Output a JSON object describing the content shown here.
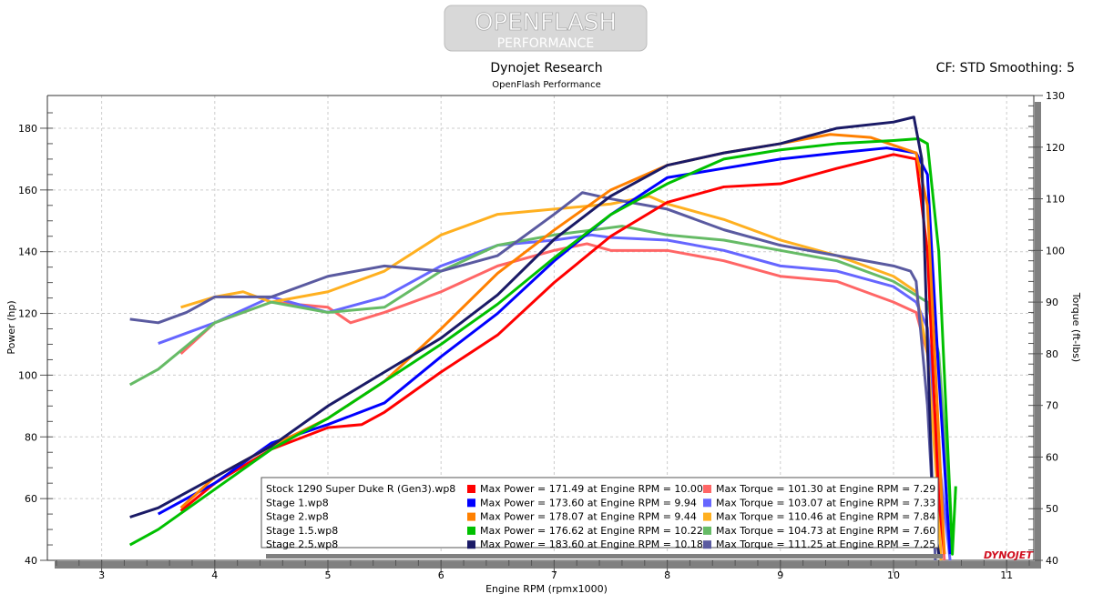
{
  "header": {
    "logo_line1": "OPENFLASH",
    "logo_line2": "PERFORMANCE",
    "title": "Dynojet Research",
    "subtitle": "OpenFlash Performance",
    "settings": "CF: STD Smoothing: 5",
    "watermark": "DYNOJET"
  },
  "chart_data": {
    "type": "line",
    "title": "Dynojet Research",
    "subtitle": "OpenFlash Performance",
    "xlabel": "Engine RPM (rpmx1000)",
    "ylabel": "Power (hp)",
    "y2label": "Torque (ft-lbs)",
    "xlim": [
      2.52,
      11.24
    ],
    "ylim": [
      40,
      190.6
    ],
    "y2lim": [
      40,
      130
    ],
    "xticks": [
      "3",
      "4",
      "5",
      "6",
      "7",
      "8",
      "9",
      "10",
      "11"
    ],
    "yticks": [
      "40",
      "60",
      "80",
      "100",
      "120",
      "140",
      "160",
      "180"
    ],
    "y2ticks": [
      "40",
      "50",
      "60",
      "70",
      "80",
      "90",
      "100",
      "110",
      "120",
      "130"
    ],
    "grid": true,
    "legend_position": "bottom-center",
    "series": [
      {
        "name": "Stock 1290 Super Duke R (Gen3).wp8",
        "power_color": "#ff0000",
        "torque_color": "#ff6666",
        "power_label": "Max Power = 171.49 at Engine RPM = 10.00",
        "torque_label": "Max Torque = 101.30 at Engine RPM = 7.29",
        "power": [
          [
            3.7,
            56
          ],
          [
            4,
            65
          ],
          [
            4.5,
            76
          ],
          [
            5,
            83
          ],
          [
            5.3,
            84
          ],
          [
            5.5,
            88
          ],
          [
            6,
            101
          ],
          [
            6.5,
            113
          ],
          [
            7,
            130
          ],
          [
            7.5,
            145
          ],
          [
            8,
            156
          ],
          [
            8.5,
            161
          ],
          [
            9,
            162
          ],
          [
            9.5,
            167
          ],
          [
            10,
            171.5
          ],
          [
            10.2,
            170
          ],
          [
            10.3,
            140
          ],
          [
            10.4,
            60
          ],
          [
            10.45,
            42
          ]
        ],
        "torque": [
          [
            3.7,
            80
          ],
          [
            4,
            86
          ],
          [
            4.5,
            90
          ],
          [
            5,
            89
          ],
          [
            5.2,
            86
          ],
          [
            5.5,
            88
          ],
          [
            6,
            92
          ],
          [
            6.5,
            97
          ],
          [
            7,
            100
          ],
          [
            7.29,
            101.3
          ],
          [
            7.5,
            100
          ],
          [
            8,
            100
          ],
          [
            8.5,
            98
          ],
          [
            9,
            95
          ],
          [
            9.5,
            94
          ],
          [
            10,
            90
          ],
          [
            10.2,
            88
          ],
          [
            10.3,
            80
          ],
          [
            10.4,
            55
          ],
          [
            10.45,
            40
          ]
        ]
      },
      {
        "name": "Stage 1.wp8",
        "power_color": "#0000ff",
        "torque_color": "#6666ff",
        "power_label": "Max Power = 173.60 at Engine RPM = 9.94",
        "torque_label": "Max Torque = 103.07 at Engine RPM = 7.33",
        "power": [
          [
            3.5,
            55
          ],
          [
            4,
            65
          ],
          [
            4.5,
            78
          ],
          [
            5,
            84
          ],
          [
            5.5,
            91
          ],
          [
            6,
            106
          ],
          [
            6.5,
            120
          ],
          [
            7,
            137
          ],
          [
            7.5,
            152
          ],
          [
            8,
            164
          ],
          [
            8.5,
            167
          ],
          [
            9,
            170
          ],
          [
            9.5,
            172
          ],
          [
            9.94,
            173.6
          ],
          [
            10.2,
            172
          ],
          [
            10.3,
            165
          ],
          [
            10.4,
            100
          ],
          [
            10.5,
            42
          ]
        ],
        "torque": [
          [
            3.5,
            82
          ],
          [
            4,
            86
          ],
          [
            4.5,
            91
          ],
          [
            5,
            88
          ],
          [
            5.5,
            91
          ],
          [
            6,
            97
          ],
          [
            6.5,
            101
          ],
          [
            7,
            102
          ],
          [
            7.33,
            103
          ],
          [
            7.5,
            102.5
          ],
          [
            8,
            102
          ],
          [
            8.5,
            100
          ],
          [
            9,
            97
          ],
          [
            9.5,
            96
          ],
          [
            10,
            93
          ],
          [
            10.2,
            90
          ],
          [
            10.3,
            85
          ],
          [
            10.4,
            60
          ],
          [
            10.5,
            40
          ]
        ]
      },
      {
        "name": "Stage 2.wp8",
        "power_color": "#ff8000",
        "torque_color": "#ffb020",
        "power_label": "Max Power = 178.07 at Engine RPM = 9.44",
        "torque_label": "Max Torque = 110.46 at Engine RPM = 7.84",
        "power": [
          [
            3.7,
            57
          ],
          [
            4,
            67
          ],
          [
            4.5,
            77
          ],
          [
            5,
            86
          ],
          [
            5.5,
            98
          ],
          [
            6,
            115
          ],
          [
            6.5,
            133
          ],
          [
            7,
            147
          ],
          [
            7.5,
            160
          ],
          [
            8,
            168
          ],
          [
            8.5,
            172
          ],
          [
            9,
            175
          ],
          [
            9.44,
            178
          ],
          [
            9.8,
            177
          ],
          [
            10.2,
            172
          ],
          [
            10.3,
            155
          ],
          [
            10.4,
            80
          ],
          [
            10.45,
            42
          ]
        ],
        "torque": [
          [
            3.7,
            89
          ],
          [
            4,
            91
          ],
          [
            4.25,
            92
          ],
          [
            4.5,
            90
          ],
          [
            5,
            92
          ],
          [
            5.5,
            96
          ],
          [
            6,
            103
          ],
          [
            6.5,
            107
          ],
          [
            7,
            108
          ],
          [
            7.5,
            109
          ],
          [
            7.84,
            110.5
          ],
          [
            8,
            109
          ],
          [
            8.5,
            106
          ],
          [
            9,
            102
          ],
          [
            9.5,
            99
          ],
          [
            10,
            95
          ],
          [
            10.2,
            92
          ],
          [
            10.3,
            80
          ],
          [
            10.4,
            50
          ],
          [
            10.42,
            40
          ]
        ]
      },
      {
        "name": "Stage 1.5.wp8",
        "power_color": "#00c000",
        "torque_color": "#66bb66",
        "power_label": "Max Power = 176.62 at Engine RPM = 10.22",
        "torque_label": "Max Torque = 104.73 at Engine RPM = 7.60",
        "power": [
          [
            3.25,
            45
          ],
          [
            3.5,
            50
          ],
          [
            4,
            63
          ],
          [
            4.5,
            76
          ],
          [
            5,
            86
          ],
          [
            5.5,
            98
          ],
          [
            6,
            110
          ],
          [
            6.5,
            123
          ],
          [
            7,
            138
          ],
          [
            7.5,
            152
          ],
          [
            8,
            162
          ],
          [
            8.5,
            170
          ],
          [
            9,
            173
          ],
          [
            9.5,
            175
          ],
          [
            10,
            176
          ],
          [
            10.22,
            176.6
          ],
          [
            10.3,
            175
          ],
          [
            10.4,
            140
          ],
          [
            10.5,
            60
          ],
          [
            10.52,
            42
          ],
          [
            10.55,
            64
          ]
        ],
        "torque": [
          [
            3.25,
            74
          ],
          [
            3.5,
            77
          ],
          [
            4,
            86
          ],
          [
            4.5,
            90
          ],
          [
            5,
            88
          ],
          [
            5.5,
            89
          ],
          [
            6,
            96
          ],
          [
            6.5,
            101
          ],
          [
            7,
            103
          ],
          [
            7.6,
            104.7
          ],
          [
            8,
            103
          ],
          [
            8.5,
            102
          ],
          [
            9,
            100
          ],
          [
            9.5,
            98
          ],
          [
            10,
            94
          ],
          [
            10.3,
            90
          ],
          [
            10.4,
            80
          ],
          [
            10.5,
            50
          ],
          [
            10.52,
            42
          ]
        ]
      },
      {
        "name": "Stage 2.5.wp8",
        "power_color": "#1a1a66",
        "torque_color": "#5a5aa0",
        "power_label": "Max Power = 183.60 at Engine RPM = 10.18",
        "torque_label": "Max Torque = 111.25 at Engine RPM = 7.25",
        "power": [
          [
            3.25,
            54
          ],
          [
            3.5,
            57
          ],
          [
            4,
            67
          ],
          [
            4.5,
            77
          ],
          [
            5,
            90
          ],
          [
            5.5,
            101
          ],
          [
            6,
            112
          ],
          [
            6.5,
            126
          ],
          [
            7,
            144
          ],
          [
            7.5,
            158
          ],
          [
            8,
            168
          ],
          [
            8.5,
            172
          ],
          [
            9,
            175
          ],
          [
            9.5,
            180
          ],
          [
            10,
            182
          ],
          [
            10.18,
            183.6
          ],
          [
            10.25,
            170
          ],
          [
            10.3,
            110
          ],
          [
            10.35,
            55
          ],
          [
            10.4,
            42
          ]
        ],
        "torque": [
          [
            3.25,
            86.7
          ],
          [
            3.5,
            86
          ],
          [
            3.75,
            88
          ],
          [
            4,
            91
          ],
          [
            4.5,
            91
          ],
          [
            5,
            95
          ],
          [
            5.5,
            97
          ],
          [
            6,
            96
          ],
          [
            6.5,
            99
          ],
          [
            7,
            107
          ],
          [
            7.25,
            111.2
          ],
          [
            7.5,
            110
          ],
          [
            8,
            108
          ],
          [
            8.5,
            104
          ],
          [
            9,
            101
          ],
          [
            9.5,
            99
          ],
          [
            10,
            97
          ],
          [
            10.15,
            96
          ],
          [
            10.2,
            94
          ],
          [
            10.3,
            70
          ],
          [
            10.35,
            50
          ],
          [
            10.37,
            40
          ]
        ]
      }
    ]
  }
}
